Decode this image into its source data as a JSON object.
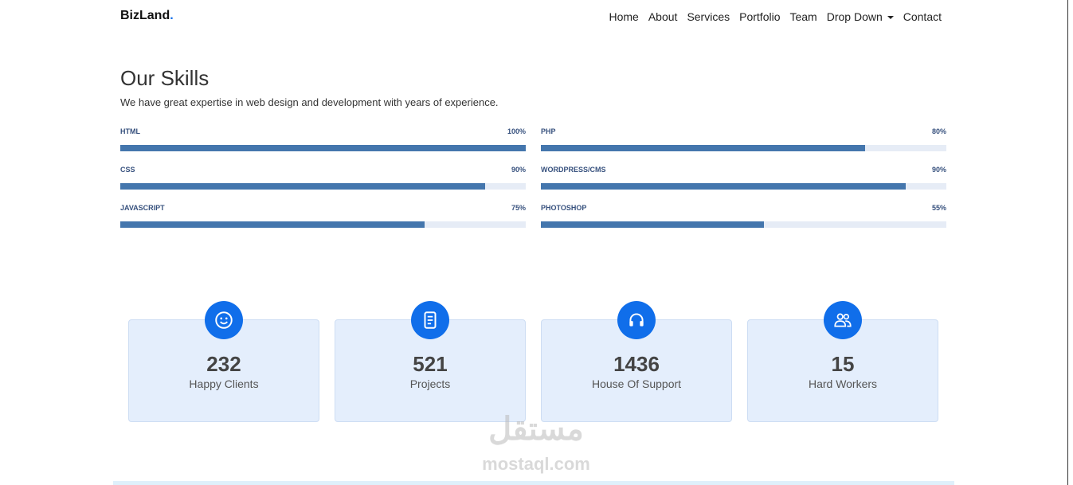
{
  "header": {
    "brand": "BizLand",
    "brand_dot": ".",
    "nav": [
      "Home",
      "About",
      "Services",
      "Portfolio",
      "Team",
      "Drop Down",
      "Contact"
    ]
  },
  "skills_section": {
    "title": "Our Skills",
    "subtitle": "We have great expertise in web design and development with years of experience.",
    "skills": [
      {
        "name": "HTML",
        "value": 100,
        "label": "100%"
      },
      {
        "name": "CSS",
        "value": 90,
        "label": "90%"
      },
      {
        "name": "JAVASCRIPT",
        "value": 75,
        "label": "75%"
      },
      {
        "name": "PHP",
        "value": 80,
        "label": "80%"
      },
      {
        "name": "WORDPRESS/CMS",
        "value": 90,
        "label": "90%"
      },
      {
        "name": "PHOTOSHOP",
        "value": 55,
        "label": "55%"
      }
    ]
  },
  "counts": [
    {
      "number": "232",
      "label": "Happy Clients"
    },
    {
      "number": "521",
      "label": "Projects"
    },
    {
      "number": "1436",
      "label": "House Of Support"
    },
    {
      "number": "15",
      "label": "Hard Workers"
    }
  ],
  "watermark": {
    "arabic": "مستقل",
    "latin": "mostaql.com"
  }
}
